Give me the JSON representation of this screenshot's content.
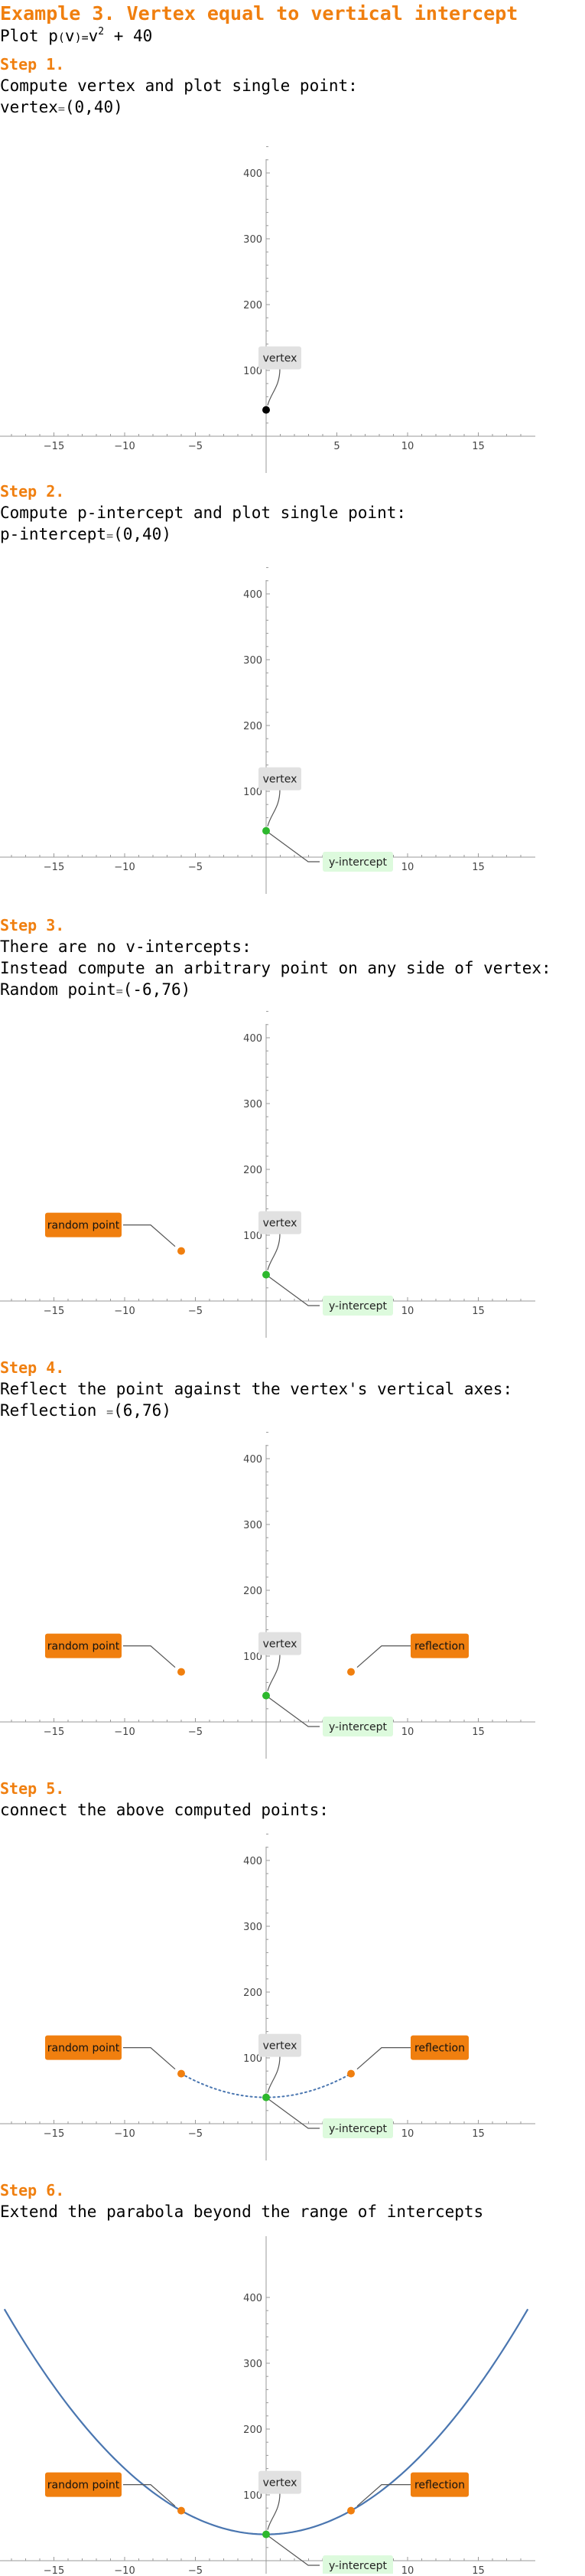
{
  "title": "Example 3. Vertex equal to vertical intercept",
  "subtitle": {
    "prefix": "Plot ",
    "func": "p",
    "lp": "(",
    "var": "v",
    "rp": ")",
    "eq": "=",
    "base": "v",
    "exp": "2",
    "rest": " + 40"
  },
  "colors": {
    "accent": "#f07f0f",
    "vertex_dot_step1": "#000000",
    "green_point": "#2db82d",
    "orange_point": "#f07f0f",
    "curve": "#4a76b0",
    "label_gray": "#e1e1e1",
    "label_green": "#ddfadd",
    "label_orange": "#f07f0f",
    "axis": "#999999"
  },
  "steps": [
    {
      "step_label": "Step 1.",
      "lines": [
        {
          "text": "Compute vertex and plot single point:"
        },
        {
          "name": "vertex",
          "eq": "=",
          "value": "(0,40)"
        }
      ]
    },
    {
      "step_label": "Step 2.",
      "lines": [
        {
          "text": "Compute p-intercept and plot single point:"
        },
        {
          "name": "p-intercept",
          "eq": "=",
          "value": "(0,40)"
        }
      ]
    },
    {
      "step_label": "Step 3.",
      "lines": [
        {
          "text": "There are no v-intercepts:"
        },
        {
          "text": "Instead compute an arbitrary point on any side of vertex:"
        },
        {
          "name": "Random point",
          "eq": "=",
          "value": "(-6,76)"
        }
      ]
    },
    {
      "step_label": "Step 4.",
      "lines": [
        {
          "text": "Reflect the point against the vertex's vertical axes:"
        },
        {
          "name": "Reflection ",
          "eq": "=",
          "value": "(6,76)"
        }
      ]
    },
    {
      "step_label": "Step 5.",
      "lines": [
        {
          "text": "connect the above computed points:"
        }
      ]
    },
    {
      "step_label": "Step 6.",
      "lines": [
        {
          "text": "Extend the parabola beyond the range of intercepts"
        }
      ]
    }
  ],
  "labels": {
    "vertex": "vertex",
    "y_intercept": "y-intercept",
    "random_point": "random point",
    "reflection": "reflection"
  },
  "chart_data": [
    {
      "type": "scatter",
      "xlim": [
        -19,
        19
      ],
      "ylim": [
        -5,
        450
      ],
      "x_ticks": [
        -15,
        -10,
        -5,
        5,
        10,
        15
      ],
      "y_ticks": [
        100,
        200,
        300,
        400
      ],
      "points": [
        {
          "x": 0,
          "y": 40,
          "color": "#000000",
          "label": "vertex"
        }
      ],
      "curve": "none"
    },
    {
      "type": "scatter",
      "xlim": [
        -19,
        19
      ],
      "ylim": [
        -5,
        450
      ],
      "x_ticks": [
        -15,
        -10,
        -5,
        5,
        10,
        15
      ],
      "y_ticks": [
        100,
        200,
        300,
        400
      ],
      "points": [
        {
          "x": 0,
          "y": 40,
          "color": "#2db82d",
          "label": "vertex"
        }
      ],
      "y_intercept_label": true,
      "curve": "none"
    },
    {
      "type": "scatter",
      "xlim": [
        -19,
        19
      ],
      "ylim": [
        -5,
        450
      ],
      "x_ticks": [
        -15,
        -10,
        -5,
        5,
        10,
        15
      ],
      "y_ticks": [
        100,
        200,
        300,
        400
      ],
      "points": [
        {
          "x": 0,
          "y": 40,
          "color": "#2db82d",
          "label": "vertex"
        },
        {
          "x": -6,
          "y": 76,
          "color": "#f07f0f",
          "label": "random point"
        }
      ],
      "y_intercept_label": true,
      "curve": "none"
    },
    {
      "type": "scatter",
      "xlim": [
        -19,
        19
      ],
      "ylim": [
        -5,
        450
      ],
      "x_ticks": [
        -15,
        -10,
        -5,
        5,
        10,
        15
      ],
      "y_ticks": [
        100,
        200,
        300,
        400
      ],
      "points": [
        {
          "x": 0,
          "y": 40,
          "color": "#2db82d",
          "label": "vertex"
        },
        {
          "x": -6,
          "y": 76,
          "color": "#f07f0f",
          "label": "random point"
        },
        {
          "x": 6,
          "y": 76,
          "color": "#f07f0f",
          "label": "reflection"
        }
      ],
      "y_intercept_label": true,
      "curve": "none"
    },
    {
      "type": "line",
      "xlim": [
        -19,
        19
      ],
      "ylim": [
        -5,
        450
      ],
      "x_ticks": [
        -15,
        -10,
        -5,
        5,
        10,
        15
      ],
      "y_ticks": [
        100,
        200,
        300,
        400
      ],
      "points": [
        {
          "x": 0,
          "y": 40,
          "color": "#2db82d",
          "label": "vertex"
        },
        {
          "x": -6,
          "y": 76,
          "color": "#f07f0f",
          "label": "random point"
        },
        {
          "x": 6,
          "y": 76,
          "color": "#f07f0f",
          "label": "reflection"
        }
      ],
      "y_intercept_label": true,
      "curve": "dotted",
      "curve_range": [
        -6,
        6
      ]
    },
    {
      "type": "line",
      "xlim": [
        -18.2,
        18.2
      ],
      "ylim": [
        -5,
        410
      ],
      "x_ticks": [
        -15,
        -10,
        -5,
        5,
        10,
        15
      ],
      "y_ticks": [
        100,
        200,
        300,
        400
      ],
      "points": [
        {
          "x": 0,
          "y": 40,
          "color": "#2db82d",
          "label": "vertex"
        },
        {
          "x": -6,
          "y": 76,
          "color": "#f07f0f",
          "label": "random point"
        },
        {
          "x": 6,
          "y": 76,
          "color": "#f07f0f",
          "label": "reflection"
        }
      ],
      "y_intercept_label": true,
      "curve": "solid",
      "curve_range": [
        -18.5,
        18.5
      ]
    }
  ]
}
